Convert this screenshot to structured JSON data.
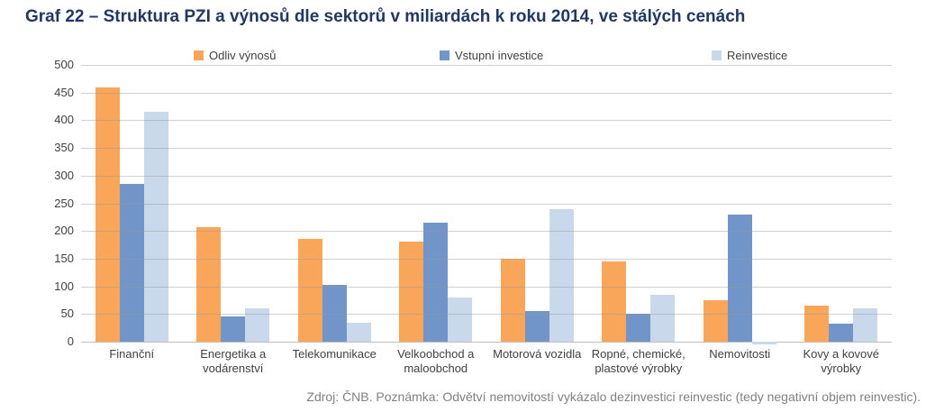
{
  "page": {
    "title": "Graf 22 – Struktura PZI a výnosů dle sektorů v miliardách k roku 2014, ve stálých cenách",
    "footer_note": "Zdroj: ČNB. Poznámka: Odvětví nemovitostí vykázalo dezinvestici reinvestic (tedy negativní objem reinvestic)."
  },
  "colors": {
    "title": "#1F3864",
    "footer": "#808080",
    "axis_text": "#404040",
    "axis_line": "#BFBFBF",
    "orange": "#F9A65B",
    "blue": "#7195C8",
    "light_blue": "#C9D8EA"
  },
  "chart_data": {
    "type": "bar",
    "title": "Graf 22 – Struktura PZI a výnosů dle sektorů v miliardách k roku 2014, ve stálých cenách",
    "categories": [
      "Finanční",
      "Energetika a\nvodárenství",
      "Telekomunikace",
      "Velkoobchod a\nmaloobchod",
      "Motorová vozidla",
      "Ropné, chemické,\nplastové výrobky",
      "Nemovitosti",
      "Kovy a kovové\nvýrobky"
    ],
    "series": [
      {
        "name": "Odliv výnosů",
        "color": "#F9A65B",
        "values": [
          460,
          207,
          185,
          180,
          150,
          145,
          75,
          65
        ]
      },
      {
        "name": "Vstupní investice",
        "color": "#7195C8",
        "values": [
          285,
          45,
          103,
          215,
          55,
          50,
          230,
          33
        ]
      },
      {
        "name": "Reinvestice",
        "color": "#C9D8EA",
        "values": [
          415,
          60,
          35,
          80,
          240,
          85,
          -5,
          60
        ]
      }
    ],
    "ylim": [
      0,
      500
    ],
    "yticks": [
      0,
      50,
      100,
      150,
      200,
      250,
      300,
      350,
      400,
      450,
      500
    ],
    "grid": true,
    "legend_position": "top",
    "xlabel": "",
    "ylabel": ""
  }
}
